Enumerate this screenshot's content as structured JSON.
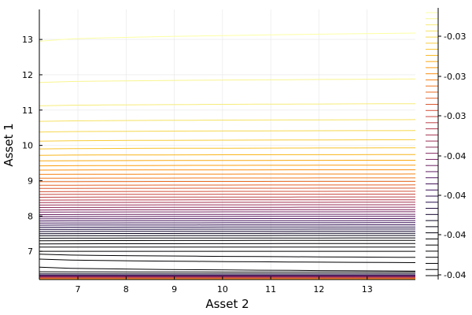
{
  "chart_data": {
    "type": "line",
    "subtype": "contour",
    "title": "",
    "xlabel": "Asset 2",
    "ylabel": "Asset 1",
    "xlim": [
      6.2,
      14.0
    ],
    "ylim": [
      6.2,
      13.85
    ],
    "x_ticks": [
      "7",
      "8",
      "9",
      "10",
      "11",
      "12",
      "13"
    ],
    "y_ticks": [
      "7",
      "8",
      "9",
      "10",
      "11",
      "12",
      "13"
    ],
    "grid": true,
    "colorbar": {
      "colormap": "inferno",
      "tick_labels": [
        "-0.03",
        "-0.03",
        "-0.03",
        "-0.04",
        "-0.04",
        "-0.04",
        "-0.04"
      ],
      "placement": "right"
    },
    "contour_levels": [
      {
        "y_start": 12.95,
        "y_end": 13.18,
        "color": "#fcffa4"
      },
      {
        "y_start": 11.78,
        "y_end": 11.88,
        "color": "#f9f590"
      },
      {
        "y_start": 11.12,
        "y_end": 11.18,
        "color": "#f7ec7a"
      },
      {
        "y_start": 10.68,
        "y_end": 10.73,
        "color": "#f6e264"
      },
      {
        "y_start": 10.38,
        "y_end": 10.42,
        "color": "#f6d84f"
      },
      {
        "y_start": 10.12,
        "y_end": 10.16,
        "color": "#f7cd3c"
      },
      {
        "y_start": 9.9,
        "y_end": 9.93,
        "color": "#f8c22b"
      },
      {
        "y_start": 9.72,
        "y_end": 9.74,
        "color": "#f9b61c"
      },
      {
        "y_start": 9.56,
        "y_end": 9.58,
        "color": "#faa912"
      },
      {
        "y_start": 9.42,
        "y_end": 9.44,
        "color": "#fb9c0e"
      },
      {
        "y_start": 9.3,
        "y_end": 9.31,
        "color": "#f98f10"
      },
      {
        "y_start": 9.18,
        "y_end": 9.19,
        "color": "#f58315"
      },
      {
        "y_start": 9.07,
        "y_end": 9.08,
        "color": "#f0771c"
      },
      {
        "y_start": 8.97,
        "y_end": 8.98,
        "color": "#ea6c23"
      },
      {
        "y_start": 8.87,
        "y_end": 8.88,
        "color": "#e3622a"
      },
      {
        "y_start": 8.78,
        "y_end": 8.79,
        "color": "#da5831"
      },
      {
        "y_start": 8.69,
        "y_end": 8.7,
        "color": "#d14f38"
      },
      {
        "y_start": 8.61,
        "y_end": 8.62,
        "color": "#c7473f"
      },
      {
        "y_start": 8.53,
        "y_end": 8.54,
        "color": "#bc4045"
      },
      {
        "y_start": 8.45,
        "y_end": 8.46,
        "color": "#b1394b"
      },
      {
        "y_start": 8.38,
        "y_end": 8.39,
        "color": "#a53351"
      },
      {
        "y_start": 8.31,
        "y_end": 8.32,
        "color": "#992e56"
      },
      {
        "y_start": 8.24,
        "y_end": 8.25,
        "color": "#8d2a5a"
      },
      {
        "y_start": 8.17,
        "y_end": 8.18,
        "color": "#81265d"
      },
      {
        "y_start": 8.11,
        "y_end": 8.12,
        "color": "#75225f"
      },
      {
        "y_start": 8.04,
        "y_end": 8.05,
        "color": "#681e60"
      },
      {
        "y_start": 7.98,
        "y_end": 7.99,
        "color": "#5c1a60"
      },
      {
        "y_start": 7.92,
        "y_end": 7.93,
        "color": "#50165e"
      },
      {
        "y_start": 7.86,
        "y_end": 7.87,
        "color": "#44135b"
      },
      {
        "y_start": 7.8,
        "y_end": 7.81,
        "color": "#390f56"
      },
      {
        "y_start": 7.74,
        "y_end": 7.75,
        "color": "#2e0c50"
      },
      {
        "y_start": 7.68,
        "y_end": 7.69,
        "color": "#240a47"
      },
      {
        "y_start": 7.62,
        "y_end": 7.63,
        "color": "#1b083c"
      },
      {
        "y_start": 7.56,
        "y_end": 7.57,
        "color": "#13062f"
      },
      {
        "y_start": 7.5,
        "y_end": 7.51,
        "color": "#0c0422"
      },
      {
        "y_start": 7.44,
        "y_end": 7.45,
        "color": "#060315"
      },
      {
        "y_start": 7.37,
        "y_end": 7.38,
        "color": "#02020b"
      },
      {
        "y_start": 7.3,
        "y_end": 7.31,
        "color": "#000004"
      },
      {
        "y_start": 7.21,
        "y_end": 7.22,
        "color": "#000004"
      },
      {
        "y_start": 7.12,
        "y_end": 7.12,
        "color": "#000004"
      },
      {
        "y_start": 7.0,
        "y_end": 7.0,
        "color": "#000004"
      },
      {
        "y_start": 6.92,
        "y_end": 6.83,
        "color": "#000004"
      },
      {
        "y_start": 6.78,
        "y_end": 6.68,
        "color": "#000004"
      },
      {
        "y_start": 6.55,
        "y_end": 6.44,
        "color": "#000004"
      },
      {
        "y_start": 6.42,
        "y_end": 6.41,
        "color": "#000004"
      },
      {
        "y_start": 6.36,
        "y_end": 6.36,
        "color": "#0c0422"
      },
      {
        "y_start": 6.33,
        "y_end": 6.33,
        "color": "#2e0c50"
      },
      {
        "y_start": 6.31,
        "y_end": 6.31,
        "color": "#50165e"
      },
      {
        "y_start": 6.29,
        "y_end": 6.29,
        "color": "#75225f"
      },
      {
        "y_start": 6.27,
        "y_end": 6.27,
        "color": "#992e56"
      },
      {
        "y_start": 6.25,
        "y_end": 6.25,
        "color": "#bc4045"
      },
      {
        "y_start": 6.24,
        "y_end": 6.24,
        "color": "#da5831"
      },
      {
        "y_start": 6.22,
        "y_end": 6.22,
        "color": "#f0771c"
      },
      {
        "y_start": 6.21,
        "y_end": 6.21,
        "color": "#fb9c0e"
      }
    ]
  }
}
